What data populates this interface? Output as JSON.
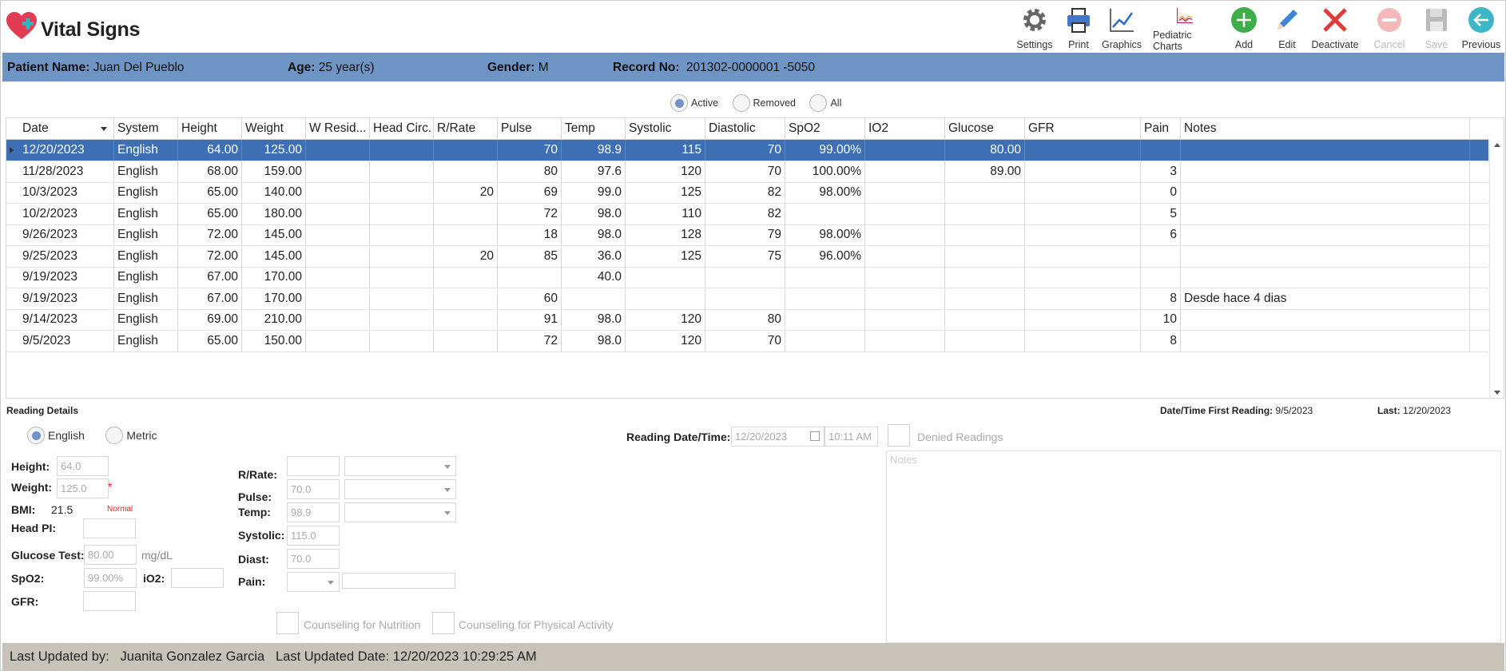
{
  "app": {
    "title": "Vital Signs"
  },
  "toolbar": [
    {
      "label": "Settings",
      "icon": "gear-icon",
      "enabled": true
    },
    {
      "label": "Print",
      "icon": "printer-icon",
      "enabled": true
    },
    {
      "label": "Graphics",
      "icon": "line-chart-icon",
      "enabled": true
    },
    {
      "label": "Pediatric Charts",
      "icon": "growth-chart-icon",
      "enabled": true
    },
    {
      "label": "Add",
      "icon": "add-icon",
      "enabled": true
    },
    {
      "label": "Edit",
      "icon": "pencil-icon",
      "enabled": true
    },
    {
      "label": "Deactivate",
      "icon": "x-icon",
      "enabled": true
    },
    {
      "label": "Cancel",
      "icon": "cancel-icon",
      "enabled": false
    },
    {
      "label": "Save",
      "icon": "floppy-icon",
      "enabled": false
    },
    {
      "label": "Previous",
      "icon": "back-arrow-icon",
      "enabled": true
    }
  ],
  "patient": {
    "name_label": "Patient Name:",
    "name": "Juan Del Pueblo",
    "age_label": "Age:",
    "age": "25 year(s)",
    "gender_label": "Gender:",
    "gender": "M",
    "record_label": "Record No:",
    "record": "201302-0000001 -5050"
  },
  "filter": {
    "options": [
      "Active",
      "Removed",
      "All"
    ],
    "selected": "Active"
  },
  "table": {
    "columns": [
      "Date",
      "System",
      "Height",
      "Weight",
      "W Resid...",
      "Head Circ.",
      "R/Rate",
      "Pulse",
      "Temp",
      "Systolic",
      "Diastolic",
      "SpO2",
      "IO2",
      "Glucose",
      "GFR",
      "Pain",
      "Notes"
    ],
    "rows": [
      [
        "12/20/2023",
        "English",
        "64.00",
        "125.00",
        "",
        "",
        "",
        "70",
        "98.9",
        "115",
        "70",
        "99.00%",
        "",
        "80.00",
        "",
        "",
        ""
      ],
      [
        "11/28/2023",
        "English",
        "68.00",
        "159.00",
        "",
        "",
        "",
        "80",
        "97.6",
        "120",
        "70",
        "100.00%",
        "",
        "89.00",
        "",
        "3",
        ""
      ],
      [
        "10/3/2023",
        "English",
        "65.00",
        "140.00",
        "",
        "",
        "20",
        "69",
        "99.0",
        "125",
        "82",
        "98.00%",
        "",
        "",
        "",
        "0",
        ""
      ],
      [
        "10/2/2023",
        "English",
        "65.00",
        "180.00",
        "",
        "",
        "",
        "72",
        "98.0",
        "110",
        "82",
        "",
        "",
        "",
        "",
        "5",
        ""
      ],
      [
        "9/26/2023",
        "English",
        "72.00",
        "145.00",
        "",
        "",
        "",
        "18",
        "98.0",
        "128",
        "79",
        "98.00%",
        "",
        "",
        "",
        "6",
        ""
      ],
      [
        "9/25/2023",
        "English",
        "72.00",
        "145.00",
        "",
        "",
        "20",
        "85",
        "36.0",
        "125",
        "75",
        "96.00%",
        "",
        "",
        "",
        "",
        ""
      ],
      [
        "9/19/2023",
        "English",
        "67.00",
        "170.00",
        "",
        "",
        "",
        "",
        "40.0",
        "",
        "",
        "",
        "",
        "",
        "",
        "",
        ""
      ],
      [
        "9/19/2023",
        "English",
        "67.00",
        "170.00",
        "",
        "",
        "",
        "60",
        "",
        "",
        "",
        "",
        "",
        "",
        "",
        "8",
        "Desde hace 4 dias"
      ],
      [
        "9/14/2023",
        "English",
        "69.00",
        "210.00",
        "",
        "",
        "",
        "91",
        "98.0",
        "120",
        "80",
        "",
        "",
        "",
        "",
        "10",
        ""
      ],
      [
        "9/5/2023",
        "English",
        "65.00",
        "150.00",
        "",
        "",
        "",
        "72",
        "98.0",
        "120",
        "70",
        "",
        "",
        "",
        "",
        "8",
        ""
      ]
    ],
    "selected_row": 0
  },
  "details": {
    "title": "Reading Details",
    "first_reading_label": "Date/Time First Reading:",
    "first_reading": "9/5/2023",
    "last_label": "Last:",
    "last": "12/20/2023",
    "units": {
      "options": [
        "English",
        "Metric"
      ],
      "selected": "English"
    },
    "reading_dt_label": "Reading Date/Time:",
    "reading_date": "12/20/2023",
    "reading_time": "10:11 AM",
    "denied_label": "Denied Readings",
    "notes_placeholder": "Notes",
    "height_label": "Height:",
    "height": "64.0",
    "weight_label": "Weight:",
    "weight": "125.0",
    "required_mark": "*",
    "bmi_label": "BMI:",
    "bmi": "21.5",
    "bmi_status": "Normal",
    "headpi_label": "Head PI:",
    "headpi": "",
    "glucose_label": "Glucose Test:",
    "glucose": "80.00",
    "glucose_unit": "mg/dL",
    "spo2_label": "SpO2:",
    "spo2": "99.00%",
    "io2_label": "iO2:",
    "io2": "",
    "gfr_label": "GFR:",
    "gfr": "",
    "rrate_label": "R/Rate:",
    "rrate": "",
    "pulse_label": "Pulse:",
    "pulse": "70.0",
    "temp_label": "Temp:",
    "temp": "98.9",
    "systolic_label": "Systolic:",
    "systolic": "115.0",
    "diast_label": "Diast:",
    "diast": "70.0",
    "pain_label": "Pain:",
    "pain": "",
    "counsel_nutrition": "Counseling for Nutrition",
    "counsel_activity": "Counseling for Physical Activity"
  },
  "footer": {
    "updated_by_label": "Last Updated by:",
    "updated_by": "Juanita Gonzalez Garcia",
    "updated_date_label": "Last Updated Date:",
    "updated_date": "12/20/2023 10:29:25 AM"
  },
  "colors": {
    "accent": "#6f94c6",
    "selected_row": "#3c6fb3",
    "footer": "#c7c3b9",
    "add": "#3fae49",
    "deactivate": "#e23a3a"
  }
}
